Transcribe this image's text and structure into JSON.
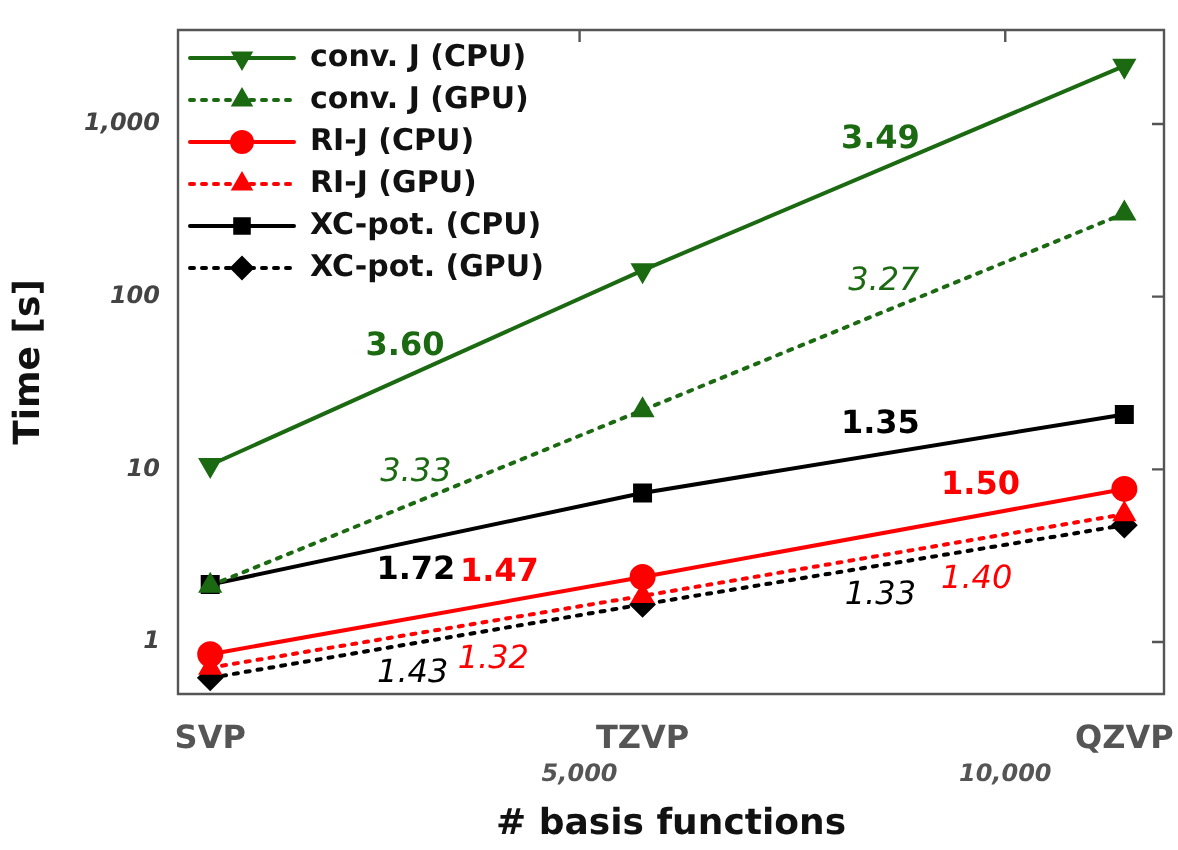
{
  "chart_data": {
    "type": "line",
    "xlabel": "# basis functions",
    "ylabel": "Time [s]",
    "log": "xy",
    "xlim": [
      2600,
      12950
    ],
    "xticks": [
      {
        "value": 5000,
        "label": "5,000"
      },
      {
        "value": 10000,
        "label": "10,000"
      }
    ],
    "ylim": [
      0.5,
      3500
    ],
    "yticks": [
      1,
      10,
      100,
      {
        "value": 1000,
        "label": "1,000"
      }
    ],
    "x": [
      2740,
      5540,
      12140
    ],
    "legend": "top left",
    "grid": false,
    "series": [
      {
        "name": "conv. J (CPU)",
        "color": "#1b6a12",
        "marker": "triangle-down",
        "line_style": "solid",
        "values": [
          10.6,
          142,
          2170
        ]
      },
      {
        "name": "conv. J (GPU)",
        "color": "#1b6a12",
        "marker": "triangle",
        "line_style": "dotted",
        "values": [
          2.12,
          22,
          303
        ]
      },
      {
        "name": "RI-J (CPU)",
        "color": "#ff0000",
        "marker": "circle",
        "line_style": "solid",
        "values": [
          0.85,
          2.38,
          7.7
        ]
      },
      {
        "name": "RI-J (GPU)",
        "color": "#ff0000",
        "marker": "triangle",
        "line_style": "dotted",
        "values": [
          0.71,
          1.85,
          5.5
        ]
      },
      {
        "name": "XC-pot. (CPU)",
        "color": "#000000",
        "marker": "square",
        "line_style": "solid",
        "values": [
          2.15,
          7.3,
          20.8
        ]
      },
      {
        "name": "XC-pot. (GPU)",
        "color": "#000000",
        "marker": "diamond",
        "line_style": "dotted",
        "values": [
          0.62,
          1.65,
          4.75
        ]
      }
    ],
    "annotations": [
      "SVP",
      "TZVP",
      "QZVP",
      {
        "text": "3.60",
        "x": 3763,
        "y": 34.2
      },
      {
        "text": "3.49",
        "x": 8160,
        "y": 546
      },
      {
        "text": "3.27",
        "x": 8205,
        "y": 81.8
      },
      {
        "text": "3.33",
        "x": 3830,
        "y": 6.45
      },
      {
        "text": "1.72",
        "x": 3830,
        "y": 3.85
      },
      {
        "text": "1.35",
        "x": 8160,
        "y": 12.2
      },
      {
        "text": "1.47",
        "x": 4388,
        "y": 1.69
      },
      {
        "text": "1.50",
        "x": 9605,
        "y": 5.42
      },
      {
        "text": "1.40",
        "x": 9545,
        "y": 3.94
      },
      {
        "text": "1.33",
        "x": 8160,
        "y": 2.78
      },
      {
        "text": "1.32",
        "x": 4345,
        "y": 1.33
      },
      {
        "text": "1.43",
        "x": 3810,
        "y": 0.98
      }
    ]
  }
}
